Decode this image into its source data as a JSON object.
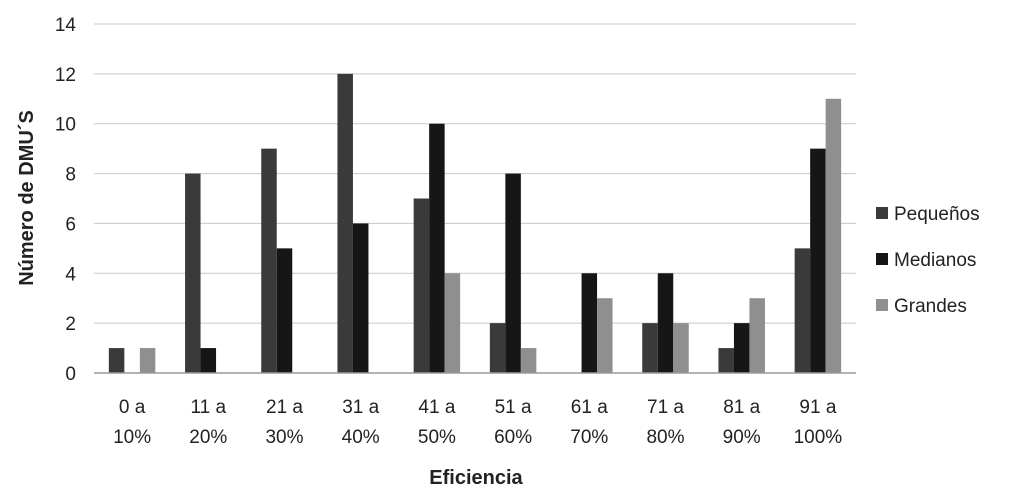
{
  "chart_data": {
    "type": "bar",
    "xlabel": "Eficiencia",
    "ylabel": "Número de DMU´S",
    "ylim": [
      0,
      14
    ],
    "yticks": [
      0,
      2,
      4,
      6,
      8,
      10,
      12,
      14
    ],
    "grid": "horizontal",
    "legend_position": "right",
    "categories": [
      [
        "0 a",
        "10%"
      ],
      [
        "11 a",
        "20%"
      ],
      [
        "21 a",
        "30%"
      ],
      [
        "31 a",
        "40%"
      ],
      [
        "41 a",
        "50%"
      ],
      [
        "51 a",
        "60%"
      ],
      [
        "61 a",
        "70%"
      ],
      [
        "71 a",
        "80%"
      ],
      [
        "81 a",
        "90%"
      ],
      [
        "91 a",
        "100%"
      ]
    ],
    "series": [
      {
        "name": "Pequeños",
        "color": "#3a3a3a",
        "values": [
          1,
          8,
          9,
          12,
          7,
          2,
          0,
          2,
          1,
          5
        ]
      },
      {
        "name": "Medianos",
        "color": "#161616",
        "values": [
          0,
          1,
          5,
          6,
          10,
          8,
          4,
          4,
          2,
          9
        ]
      },
      {
        "name": "Grandes",
        "color": "#8f8f8f",
        "values": [
          1,
          0,
          0,
          0,
          4,
          1,
          3,
          2,
          3,
          11
        ]
      }
    ]
  }
}
